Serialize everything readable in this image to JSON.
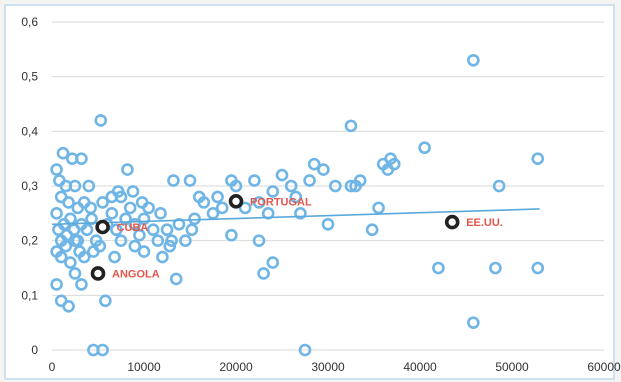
{
  "chart_data": {
    "type": "scatter",
    "xlim": [
      0,
      60000
    ],
    "ylim": [
      0,
      0.6
    ],
    "x_ticks": [
      0,
      10000,
      20000,
      30000,
      40000,
      50000,
      60000
    ],
    "y_ticks": [
      0,
      0.1,
      0.2,
      0.3,
      0.4,
      0.5,
      0.6
    ],
    "y_tick_labels": [
      "0",
      "0,1",
      "0,2",
      "0,3",
      "0,4",
      "0,5",
      "0,6"
    ],
    "grid": "horizontal",
    "colors": {
      "points": "#6fb5e6",
      "highlight": "#222222",
      "trend": "#5aa9dc",
      "label": "#e2574c",
      "grid": "#d9d9d9"
    },
    "trendline": {
      "x": [
        0,
        53000
      ],
      "y": [
        0.23,
        0.258
      ]
    },
    "highlighted": [
      {
        "label": "CUBA",
        "x": 5500,
        "y": 0.225
      },
      {
        "label": "PORTUGAL",
        "x": 20000,
        "y": 0.272
      },
      {
        "label": "ANGOLA",
        "x": 5000,
        "y": 0.14
      },
      {
        "label": "EE.UU.",
        "x": 43500,
        "y": 0.234
      }
    ],
    "points": [
      [
        500,
        0.33
      ],
      [
        800,
        0.31
      ],
      [
        1200,
        0.36
      ],
      [
        1500,
        0.3
      ],
      [
        2200,
        0.35
      ],
      [
        2500,
        0.3
      ],
      [
        3200,
        0.35
      ],
      [
        1000,
        0.28
      ],
      [
        1800,
        0.27
      ],
      [
        2800,
        0.26
      ],
      [
        3500,
        0.27
      ],
      [
        4200,
        0.26
      ],
      [
        5500,
        0.27
      ],
      [
        6500,
        0.28
      ],
      [
        7500,
        0.28
      ],
      [
        8200,
        0.33
      ],
      [
        500,
        0.25
      ],
      [
        700,
        0.22
      ],
      [
        1000,
        0.2
      ],
      [
        1300,
        0.23
      ],
      [
        1600,
        0.21
      ],
      [
        2000,
        0.24
      ],
      [
        2400,
        0.22
      ],
      [
        2800,
        0.2
      ],
      [
        3200,
        0.23
      ],
      [
        3800,
        0.22
      ],
      [
        4300,
        0.24
      ],
      [
        4800,
        0.2
      ],
      [
        5200,
        0.19
      ],
      [
        6000,
        0.23
      ],
      [
        6500,
        0.25
      ],
      [
        7000,
        0.22
      ],
      [
        7500,
        0.2
      ],
      [
        8000,
        0.24
      ],
      [
        8500,
        0.26
      ],
      [
        9000,
        0.23
      ],
      [
        9500,
        0.21
      ],
      [
        10000,
        0.24
      ],
      [
        10500,
        0.26
      ],
      [
        11000,
        0.22
      ],
      [
        500,
        0.18
      ],
      [
        1000,
        0.17
      ],
      [
        1500,
        0.19
      ],
      [
        2000,
        0.16
      ],
      [
        2500,
        0.2
      ],
      [
        3000,
        0.18
      ],
      [
        3500,
        0.17
      ],
      [
        4500,
        0.18
      ],
      [
        500,
        0.12
      ],
      [
        1000,
        0.09
      ],
      [
        1800,
        0.08
      ],
      [
        2500,
        0.14
      ],
      [
        3200,
        0.12
      ],
      [
        5800,
        0.09
      ],
      [
        5300,
        0.42
      ],
      [
        4500,
        0.0
      ],
      [
        5500,
        0.0
      ],
      [
        27500,
        0.0
      ],
      [
        9000,
        0.19
      ],
      [
        10000,
        0.18
      ],
      [
        11500,
        0.2
      ],
      [
        12000,
        0.17
      ],
      [
        12500,
        0.22
      ],
      [
        13000,
        0.2
      ],
      [
        13500,
        0.13
      ],
      [
        13200,
        0.31
      ],
      [
        13800,
        0.23
      ],
      [
        14500,
        0.2
      ],
      [
        15000,
        0.31
      ],
      [
        15500,
        0.24
      ],
      [
        16000,
        0.28
      ],
      [
        16500,
        0.27
      ],
      [
        17500,
        0.25
      ],
      [
        18000,
        0.28
      ],
      [
        18500,
        0.26
      ],
      [
        19500,
        0.31
      ],
      [
        20000,
        0.3
      ],
      [
        21000,
        0.26
      ],
      [
        22000,
        0.31
      ],
      [
        22500,
        0.27
      ],
      [
        23500,
        0.25
      ],
      [
        24000,
        0.29
      ],
      [
        25000,
        0.32
      ],
      [
        26000,
        0.3
      ],
      [
        26500,
        0.28
      ],
      [
        27000,
        0.25
      ],
      [
        28000,
        0.31
      ],
      [
        19500,
        0.21
      ],
      [
        22500,
        0.2
      ],
      [
        23000,
        0.14
      ],
      [
        24000,
        0.16
      ],
      [
        28500,
        0.34
      ],
      [
        29500,
        0.33
      ],
      [
        30000,
        0.23
      ],
      [
        30800,
        0.3
      ],
      [
        32500,
        0.3
      ],
      [
        33000,
        0.3
      ],
      [
        33500,
        0.31
      ],
      [
        32500,
        0.41
      ],
      [
        34800,
        0.22
      ],
      [
        35500,
        0.26
      ],
      [
        36000,
        0.34
      ],
      [
        36500,
        0.33
      ],
      [
        36800,
        0.35
      ],
      [
        37200,
        0.34
      ],
      [
        40500,
        0.37
      ],
      [
        42000,
        0.15
      ],
      [
        45800,
        0.53
      ],
      [
        45800,
        0.05
      ],
      [
        48200,
        0.15
      ],
      [
        48600,
        0.3
      ],
      [
        52800,
        0.35
      ],
      [
        52800,
        0.15
      ],
      [
        7200,
        0.29
      ],
      [
        8800,
        0.29
      ],
      [
        9800,
        0.27
      ],
      [
        11800,
        0.25
      ],
      [
        6800,
        0.17
      ],
      [
        12800,
        0.19
      ],
      [
        4000,
        0.3
      ],
      [
        15200,
        0.22
      ]
    ]
  }
}
